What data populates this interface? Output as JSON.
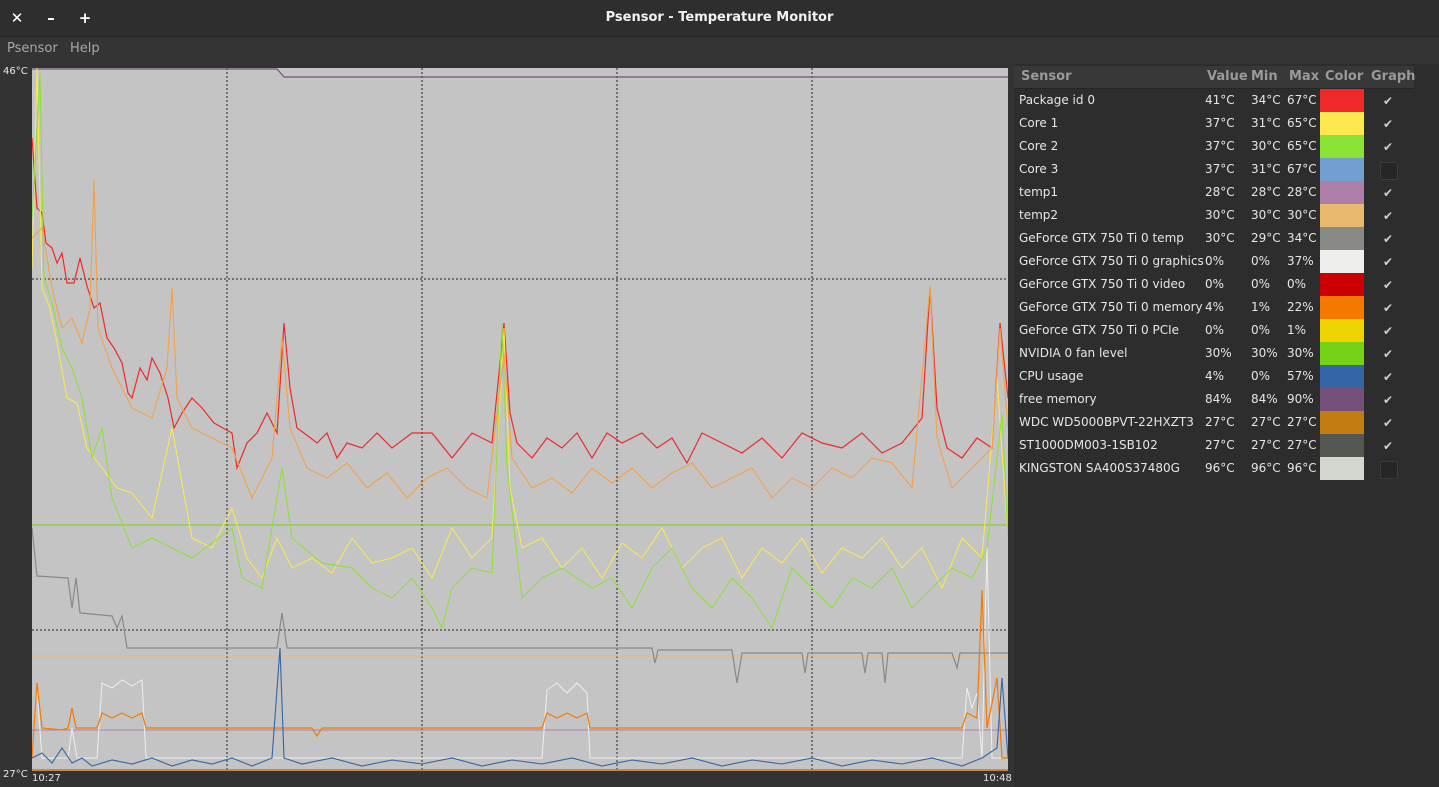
{
  "window": {
    "title": "Psensor - Temperature Monitor",
    "close_glyph": "✕",
    "minimize_glyph": "–",
    "maximize_glyph": "+"
  },
  "menu": {
    "items": [
      "Psensor",
      "Help"
    ]
  },
  "graph": {
    "y_max_label": "46°C",
    "y_min_label": "27°C",
    "x_start_label": "10:27",
    "x_end_label": "10:48",
    "background": "#c4c4c4"
  },
  "table": {
    "headers": {
      "sensor": "Sensor",
      "value": "Value",
      "min": "Min",
      "max": "Max",
      "color": "Color",
      "graph": "Graph"
    },
    "rows": [
      {
        "sensor": "Package id 0",
        "value": "41°C",
        "min": "34°C",
        "max": "67°C",
        "color": "#ef2929",
        "graph": true
      },
      {
        "sensor": "Core 1",
        "value": "37°C",
        "min": "31°C",
        "max": "65°C",
        "color": "#fce94f",
        "graph": true
      },
      {
        "sensor": "Core 2",
        "value": "37°C",
        "min": "30°C",
        "max": "65°C",
        "color": "#8ae234",
        "graph": true
      },
      {
        "sensor": "Core 3",
        "value": "37°C",
        "min": "31°C",
        "max": "67°C",
        "color": "#729fcf",
        "graph": false
      },
      {
        "sensor": "temp1",
        "value": "28°C",
        "min": "28°C",
        "max": "28°C",
        "color": "#ad7fa8",
        "graph": true
      },
      {
        "sensor": "temp2",
        "value": "30°C",
        "min": "30°C",
        "max": "30°C",
        "color": "#e9b96e",
        "graph": true
      },
      {
        "sensor": "GeForce GTX 750 Ti 0 temp",
        "value": "30°C",
        "min": "29°C",
        "max": "34°C",
        "color": "#888a85",
        "graph": true
      },
      {
        "sensor": "GeForce GTX 750 Ti 0 graphics",
        "value": "0%",
        "min": "0%",
        "max": "37%",
        "color": "#eeeeec",
        "graph": true
      },
      {
        "sensor": "GeForce GTX 750 Ti 0 video",
        "value": "0%",
        "min": "0%",
        "max": "0%",
        "color": "#cc0000",
        "graph": true
      },
      {
        "sensor": "GeForce GTX 750 Ti 0 memory",
        "value": "4%",
        "min": "1%",
        "max": "22%",
        "color": "#f57900",
        "graph": true
      },
      {
        "sensor": "GeForce GTX 750 Ti 0 PCIe",
        "value": "0%",
        "min": "0%",
        "max": "1%",
        "color": "#edd400",
        "graph": true
      },
      {
        "sensor": "NVIDIA 0 fan level",
        "value": "30%",
        "min": "30%",
        "max": "30%",
        "color": "#73d216",
        "graph": true
      },
      {
        "sensor": "CPU usage",
        "value": "4%",
        "min": "0%",
        "max": "57%",
        "color": "#3465a4",
        "graph": true
      },
      {
        "sensor": "free memory",
        "value": "84%",
        "min": "84%",
        "max": "90%",
        "color": "#75507b",
        "graph": true
      },
      {
        "sensor": "WDC WD5000BPVT-22HXZT3",
        "value": "27°C",
        "min": "27°C",
        "max": "27°C",
        "color": "#c17d11",
        "graph": true
      },
      {
        "sensor": "ST1000DM003-1SB102",
        "value": "27°C",
        "min": "27°C",
        "max": "27°C",
        "color": "#555753",
        "graph": true
      },
      {
        "sensor": "KINGSTON SA400S37480G",
        "value": "96°C",
        "min": "96°C",
        "max": "96°C",
        "color": "#d3d7cf",
        "graph": false
      }
    ]
  },
  "icons": {
    "check": "✔"
  }
}
